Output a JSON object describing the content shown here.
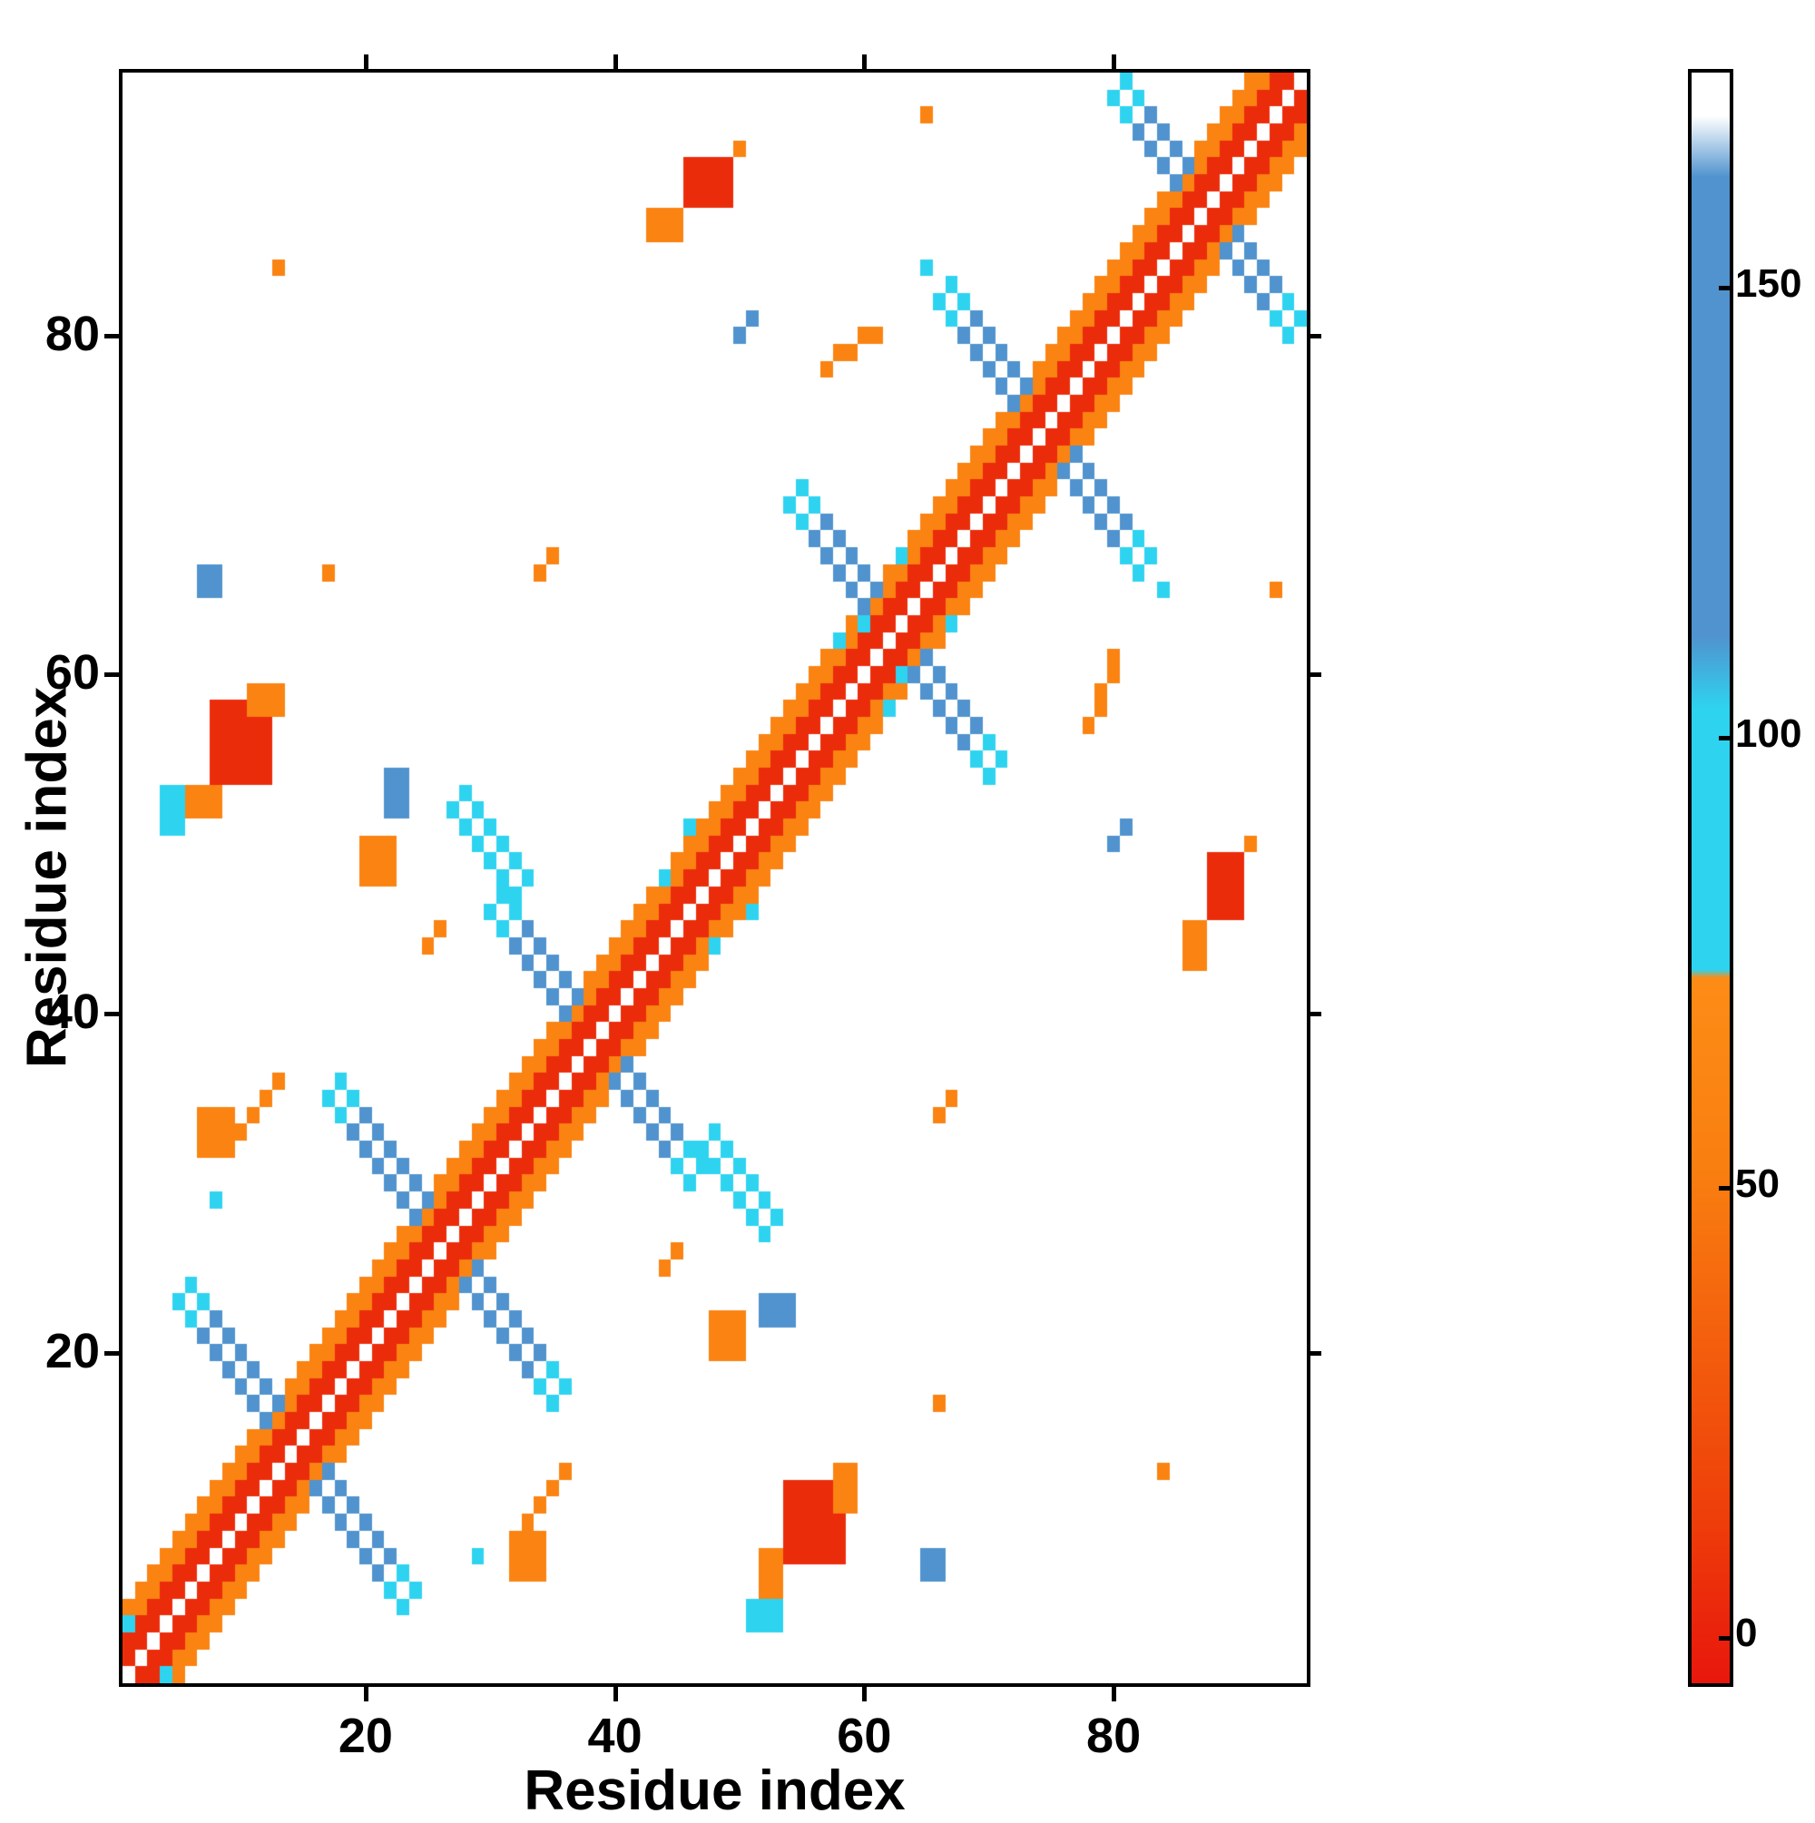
{
  "chart_data": {
    "type": "heatmap",
    "title": "",
    "xlabel": "Residue index",
    "ylabel": "Residue index",
    "x_range": [
      1,
      95
    ],
    "y_range": [
      1,
      95
    ],
    "x_ticks": [
      20,
      40,
      60,
      80
    ],
    "y_ticks": [
      20,
      40,
      60,
      80
    ],
    "grid": false,
    "background": "#ffffff",
    "legend_position": "right-colorbar",
    "colorbar": {
      "ticks": [
        0,
        50,
        100,
        150
      ],
      "vmin": -5,
      "vmax": 174,
      "stops": [
        {
          "pct": 0,
          "color": "#e8170d"
        },
        {
          "pct": 10,
          "color": "#ee3d0a"
        },
        {
          "pct": 32,
          "color": "#f97f10"
        },
        {
          "pct": 43.8,
          "color": "#fd8c16"
        },
        {
          "pct": 44.3,
          "color": "#2ed3f0"
        },
        {
          "pct": 60.5,
          "color": "#2ed3f0"
        },
        {
          "pct": 65,
          "color": "#5093ce"
        },
        {
          "pct": 93.5,
          "color": "#5093ce"
        },
        {
          "pct": 97.3,
          "color": "#ffffff"
        },
        {
          "pct": 100,
          "color": "#ffffff"
        }
      ]
    },
    "value_legend": {
      "red": 5,
      "orange": 58,
      "cyan": 90,
      "blue": 135
    },
    "features": {
      "symmetric": true,
      "diagonal": {
        "from": 1,
        "to": 95,
        "red_halfwidth": 2,
        "orange_halfwidth": 4,
        "red_value": 5,
        "orange_value": 58
      },
      "hairpins": [
        {
          "center": 14,
          "half": 9,
          "thick": 2
        },
        {
          "center": 26,
          "half": 9,
          "thick": 2
        },
        {
          "center": 38,
          "half": 8,
          "thick": 2
        },
        {
          "center": 62,
          "half": 8,
          "thick": 2
        },
        {
          "center": 74,
          "half": 8,
          "thick": 2
        },
        {
          "center": 87,
          "half": 7,
          "thick": 2
        }
      ],
      "hairpin_values": {
        "core": 135,
        "tip": 90
      },
      "anti_segments": [
        {
          "x": 27,
          "y": 52,
          "len": 6,
          "thick": 2,
          "value": 90
        }
      ],
      "blobs": [
        {
          "x0": 8,
          "y0": 54,
          "x1": 12,
          "y1": 58,
          "value": 5
        },
        {
          "x0": 6,
          "y0": 52,
          "x1": 8,
          "y1": 53,
          "value": 58
        },
        {
          "x0": 11,
          "y0": 58,
          "x1": 13,
          "y1": 59,
          "value": 58
        },
        {
          "x0": 4,
          "y0": 51,
          "x1": 5,
          "y1": 53,
          "value": 90
        },
        {
          "x0": 7,
          "y0": 32,
          "x1": 9,
          "y1": 34,
          "value": 58
        },
        {
          "x0": 7,
          "y0": 65,
          "x1": 8,
          "y1": 66,
          "value": 135
        },
        {
          "x0": 20,
          "y0": 48,
          "x1": 22,
          "y1": 50,
          "value": 58
        },
        {
          "x0": 22,
          "y0": 52,
          "x1": 23,
          "y1": 54,
          "value": 135
        },
        {
          "x0": 46,
          "y0": 88,
          "x1": 49,
          "y1": 90,
          "value": 5
        },
        {
          "x0": 43,
          "y0": 86,
          "x1": 45,
          "y1": 87,
          "value": 58
        }
      ],
      "dots": [
        {
          "x": 10,
          "y": 33,
          "value": 58
        },
        {
          "x": 11,
          "y": 34,
          "value": 58
        },
        {
          "x": 12,
          "y": 35,
          "value": 58
        },
        {
          "x": 13,
          "y": 36,
          "value": 58
        },
        {
          "x": 50,
          "y": 91,
          "value": 58
        },
        {
          "x": 57,
          "y": 78,
          "value": 58
        },
        {
          "x": 58,
          "y": 79,
          "value": 58
        },
        {
          "x": 59,
          "y": 79,
          "value": 58
        },
        {
          "x": 60,
          "y": 80,
          "value": 58
        },
        {
          "x": 61,
          "y": 80,
          "value": 58
        },
        {
          "x": 13,
          "y": 84,
          "value": 58
        },
        {
          "x": 17,
          "y": 66,
          "value": 58
        },
        {
          "x": 34,
          "y": 66,
          "value": 58
        },
        {
          "x": 35,
          "y": 67,
          "value": 58
        },
        {
          "x": 65,
          "y": 84,
          "value": 90
        },
        {
          "x": 50,
          "y": 80,
          "value": 135
        },
        {
          "x": 51,
          "y": 81,
          "value": 135
        },
        {
          "x": 65,
          "y": 93,
          "value": 58
        },
        {
          "x": 25,
          "y": 44,
          "value": 58
        },
        {
          "x": 26,
          "y": 45,
          "value": 58
        },
        {
          "x": 1,
          "y": 4,
          "value": 90
        },
        {
          "x": 8,
          "y": 29,
          "value": 90
        },
        {
          "x": 44,
          "y": 48,
          "value": 90
        },
        {
          "x": 46,
          "y": 51,
          "value": 90
        },
        {
          "x": 58,
          "y": 62,
          "value": 90
        },
        {
          "x": 60,
          "y": 63,
          "value": 90
        },
        {
          "x": 63,
          "y": 67,
          "value": 90
        }
      ]
    }
  }
}
